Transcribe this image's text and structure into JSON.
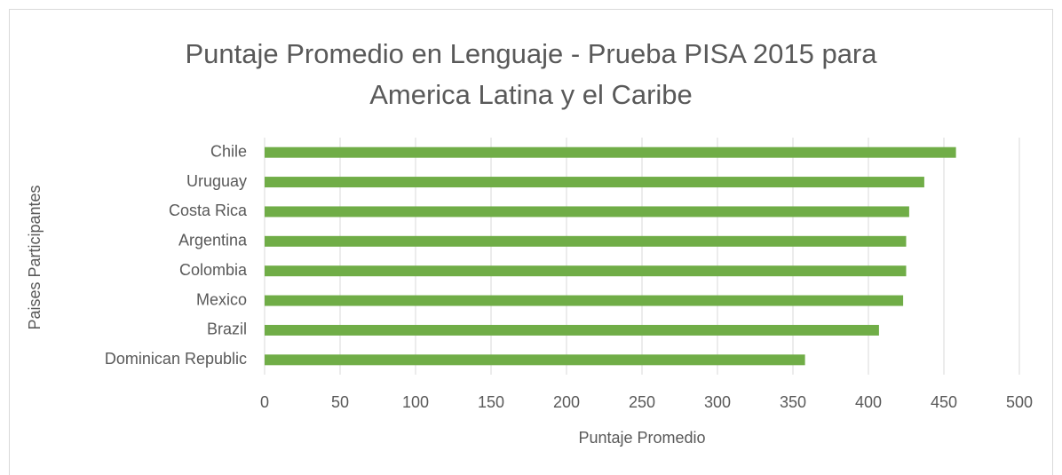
{
  "chart_data": {
    "type": "bar",
    "orientation": "horizontal",
    "title": "Puntaje Promedio en Lenguaje - Prueba PISA 2015 para America Latina y el Caribe",
    "xlabel": "Puntaje Promedio",
    "ylabel": "Paises Participantes",
    "categories": [
      "Chile",
      "Uruguay",
      "Costa Rica",
      "Argentina",
      "Colombia",
      "Mexico",
      "Brazil",
      "Dominican Republic"
    ],
    "values": [
      458,
      437,
      427,
      425,
      425,
      423,
      407,
      358
    ],
    "color": "#70ad47",
    "xlim": [
      0,
      500
    ],
    "xticks": [
      0,
      50,
      100,
      150,
      200,
      250,
      300,
      350,
      400,
      450,
      500
    ],
    "grid": true
  }
}
